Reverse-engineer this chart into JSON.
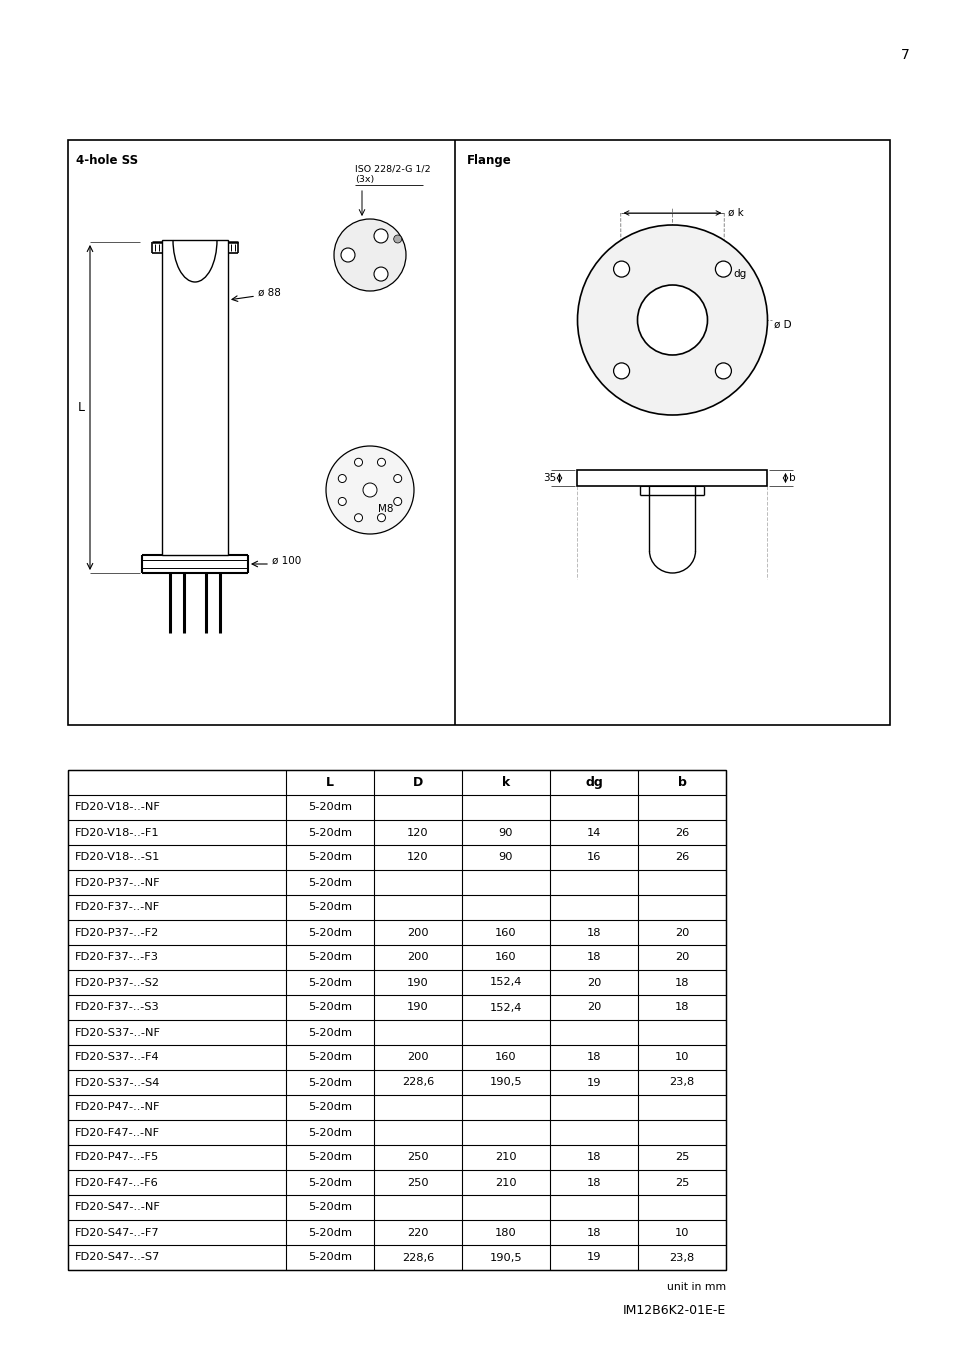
{
  "page_number": "7",
  "bg_color": "#ffffff",
  "left_panel_title": "4-hole SS",
  "right_panel_title": "Flange",
  "footer_note": "unit in mm",
  "doc_code": "IM12B6K2-01E-E",
  "table_headers": [
    "",
    "L",
    "D",
    "k",
    "dg",
    "b"
  ],
  "table_rows": [
    [
      "FD20-V18-..-NF",
      "5-20dm",
      "",
      "",
      "",
      ""
    ],
    [
      "FD20-V18-..-F1",
      "5-20dm",
      "120",
      "90",
      "14",
      "26"
    ],
    [
      "FD20-V18-..-S1",
      "5-20dm",
      "120",
      "90",
      "16",
      "26"
    ],
    [
      "FD20-P37-..-NF",
      "5-20dm",
      "",
      "",
      "",
      ""
    ],
    [
      "FD20-F37-..-NF",
      "5-20dm",
      "",
      "",
      "",
      ""
    ],
    [
      "FD20-P37-..-F2",
      "5-20dm",
      "200",
      "160",
      "18",
      "20"
    ],
    [
      "FD20-F37-..-F3",
      "5-20dm",
      "200",
      "160",
      "18",
      "20"
    ],
    [
      "FD20-P37-..-S2",
      "5-20dm",
      "190",
      "152,4",
      "20",
      "18"
    ],
    [
      "FD20-F37-..-S3",
      "5-20dm",
      "190",
      "152,4",
      "20",
      "18"
    ],
    [
      "FD20-S37-..-NF",
      "5-20dm",
      "",
      "",
      "",
      ""
    ],
    [
      "FD20-S37-..-F4",
      "5-20dm",
      "200",
      "160",
      "18",
      "10"
    ],
    [
      "FD20-S37-..-S4",
      "5-20dm",
      "228,6",
      "190,5",
      "19",
      "23,8"
    ],
    [
      "FD20-P47-..-NF",
      "5-20dm",
      "",
      "",
      "",
      ""
    ],
    [
      "FD20-F47-..-NF",
      "5-20dm",
      "",
      "",
      "",
      ""
    ],
    [
      "FD20-P47-..-F5",
      "5-20dm",
      "250",
      "210",
      "18",
      "25"
    ],
    [
      "FD20-F47-..-F6",
      "5-20dm",
      "250",
      "210",
      "18",
      "25"
    ],
    [
      "FD20-S47-..-NF",
      "5-20dm",
      "",
      "",
      "",
      ""
    ],
    [
      "FD20-S47-..-F7",
      "5-20dm",
      "220",
      "180",
      "18",
      "10"
    ],
    [
      "FD20-S47-..-S7",
      "5-20dm",
      "228,6",
      "190,5",
      "19",
      "23,8"
    ]
  ],
  "diagram_label_phi88": "ø 88",
  "diagram_label_phi100": "ø 100",
  "diagram_label_L": "L",
  "diagram_label_ISO": "ISO 228/2-G 1/2\n(3x)",
  "diagram_label_M8": "M8",
  "diagram_label_phik": "ø k",
  "diagram_label_phiD": "ø D",
  "diagram_label_dg": "dg",
  "diagram_label_35": "35",
  "diagram_label_b": "b"
}
